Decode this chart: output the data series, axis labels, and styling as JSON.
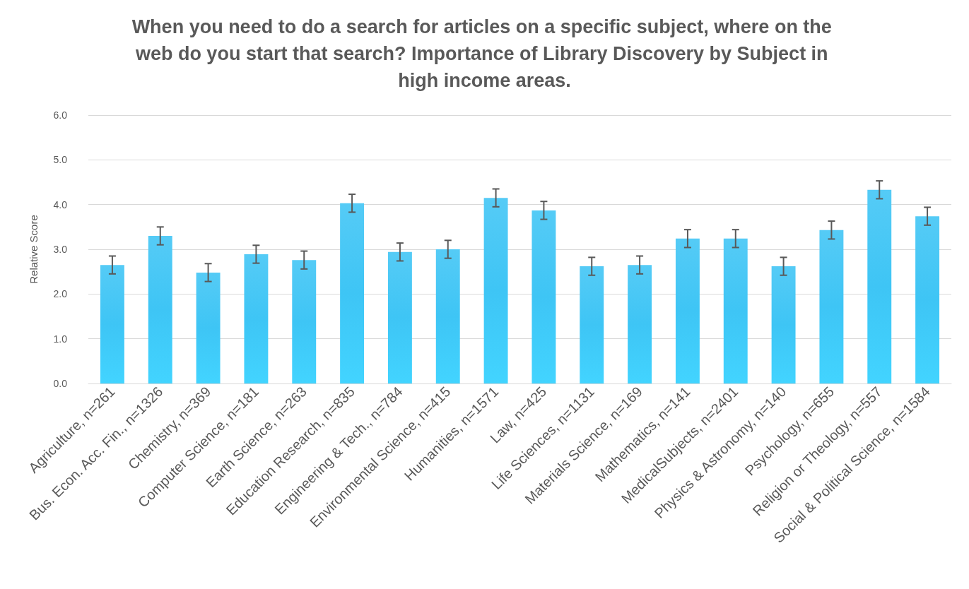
{
  "chart_data": {
    "type": "bar",
    "title": "When you need to do a search for articles on a specific subject, where on the web do you start that search? Importance of Library Discovery by Subject in high income areas.",
    "ylabel": "Relative Score",
    "categories": [
      "Agriculture, n=261",
      "Bus. Econ. Acc. Fin., n=1326",
      "Chemistry, n=369",
      "Computer Science, n=181",
      "Earth Science, n=263",
      "Education Research, n=835",
      "Engineering & Tech., n=784",
      "Environmental Science, n=415",
      "Humanities, n=1571",
      "Law, n=425",
      "Life Sciences, n=1131",
      "Materials Science, n=169",
      "Mathematics, n=141",
      "MedicalSubjects, n=2401",
      "Physics & Astronomy, n=140",
      "Psychology, n=655",
      "Religion or Theology, n=557",
      "Social & Political Science, n=1584"
    ],
    "values": [
      2.65,
      3.3,
      2.48,
      2.89,
      2.76,
      4.03,
      2.94,
      3.0,
      4.15,
      3.87,
      2.62,
      2.65,
      3.24,
      3.24,
      2.62,
      3.43,
      4.33,
      3.74
    ],
    "errors": [
      0.2,
      0.2,
      0.2,
      0.2,
      0.2,
      0.2,
      0.2,
      0.2,
      0.2,
      0.2,
      0.2,
      0.2,
      0.2,
      0.2,
      0.2,
      0.2,
      0.2,
      0.2
    ],
    "color": "#3ec5f5",
    "ylim": [
      0,
      6
    ],
    "yticks": [
      {
        "value": 0,
        "label": "0.0"
      },
      {
        "value": 1,
        "label": "1.0"
      },
      {
        "value": 2,
        "label": "2.0"
      },
      {
        "value": 3,
        "label": "3.0"
      },
      {
        "value": 4,
        "label": "4.0"
      },
      {
        "value": 5,
        "label": "5.0"
      },
      {
        "value": 6,
        "label": "6.0"
      }
    ],
    "grid": "y"
  }
}
